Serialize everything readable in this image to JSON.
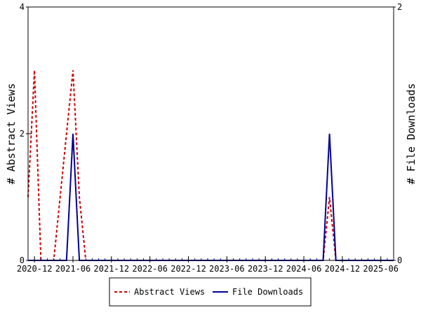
{
  "chart_data": {
    "type": "line",
    "title": "",
    "xlabel": "",
    "ylabel": "# Abstract Views",
    "y2label": "# File Downloads",
    "x_ticks": [
      "2020-12",
      "2021-06",
      "2021-12",
      "2022-06",
      "2022-12",
      "2023-06",
      "2023-12",
      "2024-06",
      "2024-12",
      "2025-06"
    ],
    "xlim": [
      "2020-11",
      "2025-08"
    ],
    "ylim": [
      0,
      4
    ],
    "y_ticks": [
      0,
      2,
      4
    ],
    "y2lim": [
      0,
      2
    ],
    "y2_ticks": [
      0,
      2
    ],
    "grid": false,
    "legend_position": "bottom",
    "series": [
      {
        "name": "Abstract Views",
        "axis": "left",
        "color": "#cc0000",
        "dash": "dashed",
        "x": [
          "2020-11",
          "2020-12",
          "2021-01",
          "2021-02",
          "2021-03",
          "2021-04",
          "2021-05",
          "2021-06",
          "2021-07",
          "2021-08",
          "2021-09",
          "2024-09",
          "2024-10",
          "2024-11",
          "2024-12",
          "2025-08"
        ],
        "y": [
          1,
          3,
          0,
          0,
          0,
          1,
          2,
          3,
          1,
          0,
          0,
          0,
          1,
          0,
          0,
          0
        ]
      },
      {
        "name": "File Downloads",
        "axis": "right",
        "color": "#000099",
        "dash": "solid",
        "x": [
          "2020-11",
          "2021-05",
          "2021-06",
          "2021-07",
          "2021-08",
          "2024-09",
          "2024-10",
          "2024-11",
          "2025-08"
        ],
        "y": [
          0,
          0,
          1,
          0,
          0,
          0,
          1,
          0,
          0
        ]
      }
    ]
  }
}
